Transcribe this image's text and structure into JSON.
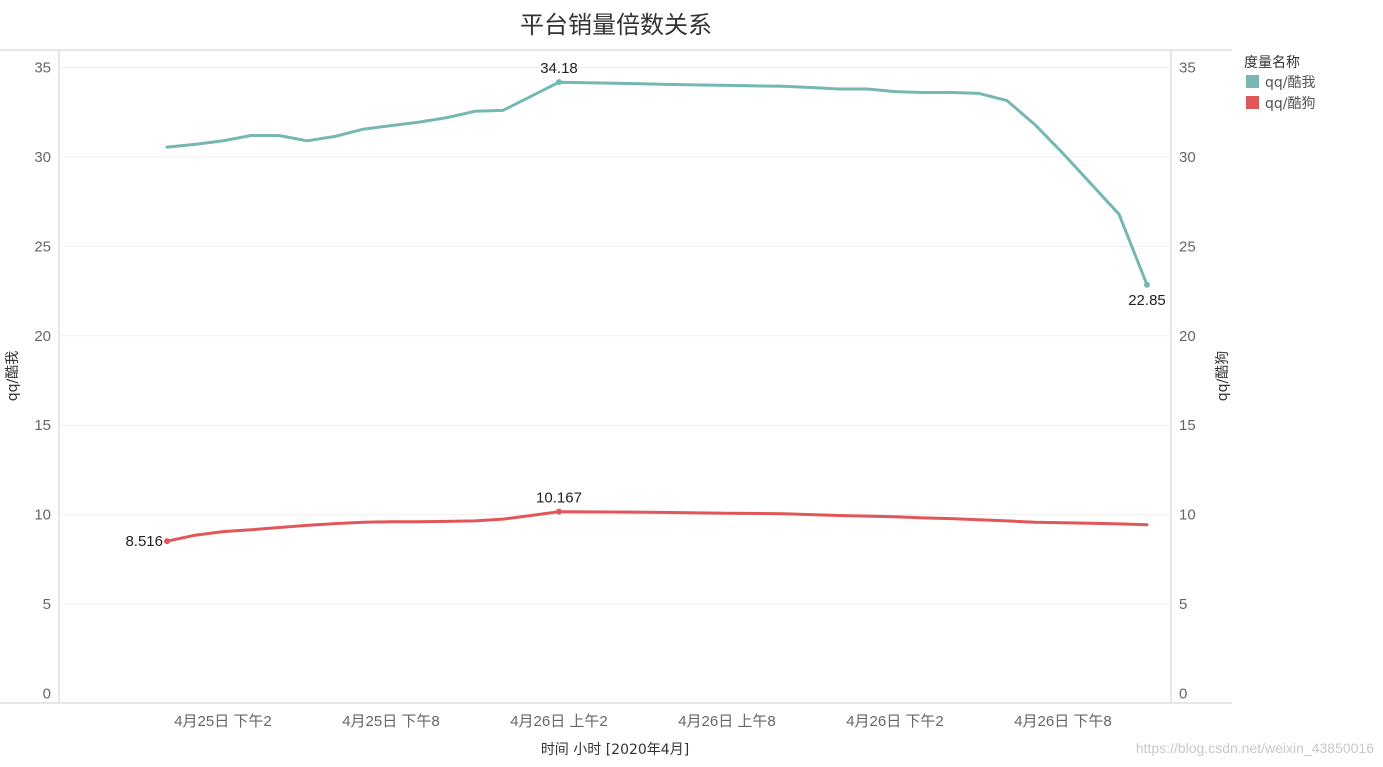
{
  "chart_data": {
    "type": "line",
    "title": "平台销量倍数关系",
    "xlabel": "时间 小时 [2020年4月]",
    "ylabel_left": "qq/酷我",
    "ylabel_right": "qq/酷狗",
    "ylim": [
      0,
      35
    ],
    "yticks": [
      0,
      5,
      10,
      15,
      20,
      25,
      30,
      35
    ],
    "grid": true,
    "legend": {
      "title": "度量名称",
      "position": "right",
      "items": [
        {
          "name": "qq/酷我",
          "color": "#76b7b2"
        },
        {
          "name": "qq/酷狗",
          "color": "#e15759"
        }
      ]
    },
    "x_ticks": [
      {
        "label": "4月25日 下午2",
        "hour": 14
      },
      {
        "label": "4月25日 下午8",
        "hour": 20
      },
      {
        "label": "4月26日 上午2",
        "hour": 26
      },
      {
        "label": "4月26日 上午8",
        "hour": 32
      },
      {
        "label": "4月26日 下午2",
        "hour": 38
      },
      {
        "label": "4月26日 下午8",
        "hour": 44
      }
    ],
    "x_range_hours": [
      10,
      47
    ],
    "series": [
      {
        "name": "qq/酷我",
        "color": "#76b7b2",
        "x_hours": [
          12,
          13,
          14,
          15,
          16,
          17,
          18,
          19,
          20,
          21,
          22,
          23,
          24,
          26,
          28,
          30,
          32,
          34,
          35,
          36,
          37,
          38,
          39,
          40,
          41,
          42,
          43,
          44,
          45,
          46,
          47
        ],
        "values": [
          30.55,
          30.7,
          30.9,
          31.2,
          31.2,
          30.9,
          31.15,
          31.55,
          31.75,
          31.95,
          32.2,
          32.55,
          32.6,
          34.18,
          34.12,
          34.05,
          34.0,
          33.95,
          33.88,
          33.8,
          33.8,
          33.65,
          33.6,
          33.6,
          33.55,
          33.15,
          31.8,
          30.2,
          28.5,
          26.8,
          22.85
        ],
        "annotations": [
          {
            "index": 13,
            "label": "34.18",
            "placement": "above"
          },
          {
            "index": 30,
            "label": "22.85",
            "placement": "below"
          }
        ]
      },
      {
        "name": "qq/酷狗",
        "color": "#e15759",
        "x_hours": [
          12,
          13,
          14,
          15,
          16,
          17,
          18,
          19,
          20,
          21,
          22,
          23,
          24,
          25,
          26,
          28,
          30,
          32,
          34,
          35,
          36,
          37,
          38,
          39,
          40,
          41,
          42,
          43,
          44,
          45,
          46,
          47
        ],
        "values": [
          8.516,
          8.85,
          9.05,
          9.15,
          9.28,
          9.4,
          9.5,
          9.58,
          9.6,
          9.6,
          9.62,
          9.65,
          9.75,
          9.95,
          10.167,
          10.15,
          10.12,
          10.08,
          10.05,
          10.0,
          9.95,
          9.92,
          9.88,
          9.82,
          9.78,
          9.72,
          9.65,
          9.58,
          9.55,
          9.52,
          9.48,
          9.44
        ],
        "annotations": [
          {
            "index": 0,
            "label": "8.516",
            "placement": "left"
          },
          {
            "index": 14,
            "label": "10.167",
            "placement": "above"
          }
        ]
      }
    ]
  },
  "watermark": "https://blog.csdn.net/weixin_43850016"
}
